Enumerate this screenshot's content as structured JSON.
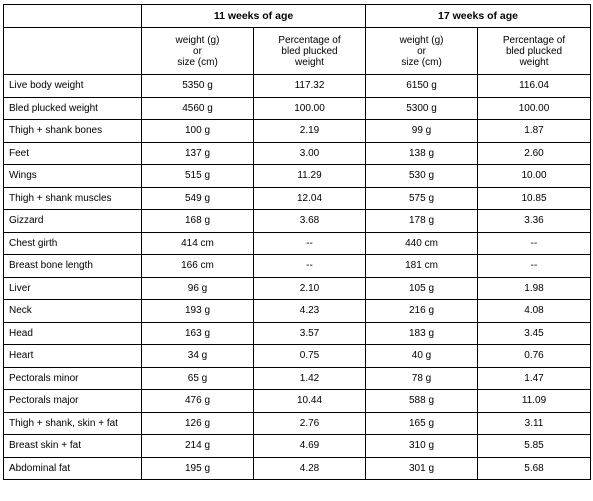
{
  "header": {
    "group1": "11 weeks of age",
    "group2": "17 weeks of age",
    "col_weight": [
      "weight (g)",
      "or",
      "size (cm)"
    ],
    "col_percent": [
      "Percentage of",
      "bled plucked",
      "weight"
    ]
  },
  "rows": [
    {
      "label": "Live body weight",
      "w11": "5350 g",
      "p11": "117.32",
      "w17": "6150 g",
      "p17": "116.04"
    },
    {
      "label": "Bled plucked weight",
      "w11": "4560 g",
      "p11": "100.00",
      "w17": "5300 g",
      "p17": "100.00"
    },
    {
      "label": "Thigh + shank bones",
      "w11": "100 g",
      "p11": "2.19",
      "w17": "99 g",
      "p17": "1.87"
    },
    {
      "label": "Feet",
      "w11": "137 g",
      "p11": "3.00",
      "w17": "138 g",
      "p17": "2.60"
    },
    {
      "label": "Wings",
      "w11": "515 g",
      "p11": "11.29",
      "w17": "530 g",
      "p17": "10.00"
    },
    {
      "label": "Thigh + shank muscles",
      "w11": "549 g",
      "p11": "12.04",
      "w17": "575 g",
      "p17": "10.85"
    },
    {
      "label": "Gizzard",
      "w11": "168 g",
      "p11": "3.68",
      "w17": "178 g",
      "p17": "3.36"
    },
    {
      "label": "Chest girth",
      "w11": "414 cm",
      "p11": "--",
      "w17": "440 cm",
      "p17": "--"
    },
    {
      "label": "Breast bone length",
      "w11": "166 cm",
      "p11": "--",
      "w17": "181 cm",
      "p17": "--"
    },
    {
      "label": "Liver",
      "w11": "96 g",
      "p11": "2.10",
      "w17": "105 g",
      "p17": "1.98"
    },
    {
      "label": "Neck",
      "w11": "193 g",
      "p11": "4.23",
      "w17": "216 g",
      "p17": "4.08"
    },
    {
      "label": "Head",
      "w11": "163 g",
      "p11": "3.57",
      "w17": "183 g",
      "p17": "3.45"
    },
    {
      "label": "Heart",
      "w11": "34 g",
      "p11": "0.75",
      "w17": "40 g",
      "p17": "0.76"
    },
    {
      "label": "Pectorals minor",
      "w11": "65 g",
      "p11": "1.42",
      "w17": "78 g",
      "p17": "1.47"
    },
    {
      "label": "Pectorals major",
      "w11": "476 g",
      "p11": "10.44",
      "w17": "588 g",
      "p17": "11.09"
    },
    {
      "label": "Thigh + shank, skin + fat",
      "w11": "126 g",
      "p11": "2.76",
      "w17": "165 g",
      "p17": "3.11"
    },
    {
      "label": "Breast skin + fat",
      "w11": "214 g",
      "p11": "4.69",
      "w17": "310 g",
      "p17": "5.85"
    },
    {
      "label": "Abdominal fat",
      "w11": "195 g",
      "p11": "4.28",
      "w17": "301 g",
      "p17": "5.68"
    }
  ]
}
